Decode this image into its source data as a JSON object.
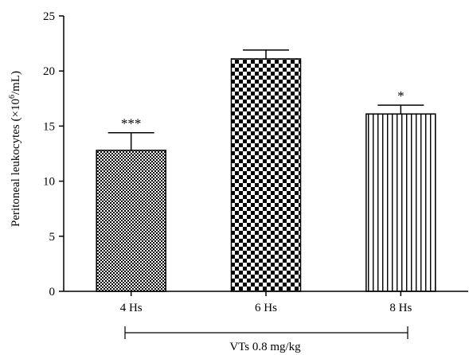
{
  "chart_data": {
    "type": "bar",
    "categories": [
      "4 Hs",
      "6 Hs",
      "8 Hs"
    ],
    "values": [
      12.8,
      21.1,
      16.1
    ],
    "errors": [
      1.6,
      0.8,
      0.8
    ],
    "significance": [
      "***",
      "",
      "*"
    ],
    "patterns": [
      "fine-checker",
      "coarse-checker",
      "vertical-lines"
    ],
    "ylabel_main": "Peritoneal leukocytes (×10",
    "ylabel_sup": "6",
    "ylabel_tail": "/mL)",
    "group_label": "VTs 0.8 mg/kg",
    "ylim": [
      0,
      25
    ],
    "yticks": [
      "0",
      "5",
      "10",
      "15",
      "20",
      "25"
    ],
    "grid": false,
    "colors": {
      "bar_fill": "#000000",
      "bar_bg": "#ffffff",
      "axis": "#000000"
    }
  }
}
